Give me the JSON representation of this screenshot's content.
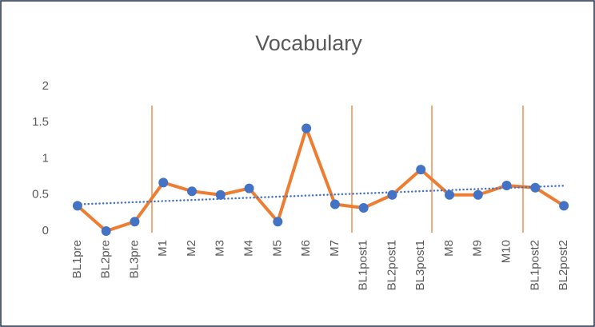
{
  "chart_data": {
    "type": "line",
    "title": "Vocabulary",
    "categories": [
      "BL1pre",
      "BL2pre",
      "BL3pre",
      "M1",
      "M2",
      "M3",
      "M4",
      "M5",
      "M6",
      "M7",
      "BL1post1",
      "BL2post1",
      "BL3post1",
      "M8",
      "M9",
      "M10",
      "BL1post2",
      "BL2post2"
    ],
    "series": [
      {
        "name": "Vocabulary",
        "color": "#ED7D31",
        "marker_color": "#4472C4",
        "values": [
          0.35,
          0,
          0.13,
          0.67,
          0.55,
          0.5,
          0.59,
          0.13,
          1.42,
          0.37,
          0.32,
          0.5,
          0.85,
          0.5,
          0.5,
          0.63,
          0.6,
          0.35
        ]
      }
    ],
    "trendline": {
      "kind": "linear",
      "color": "#4472C4"
    },
    "ylim": [
      0,
      2
    ],
    "yticks": [
      0,
      0.5,
      1,
      1.5,
      2
    ],
    "grid": false
  }
}
